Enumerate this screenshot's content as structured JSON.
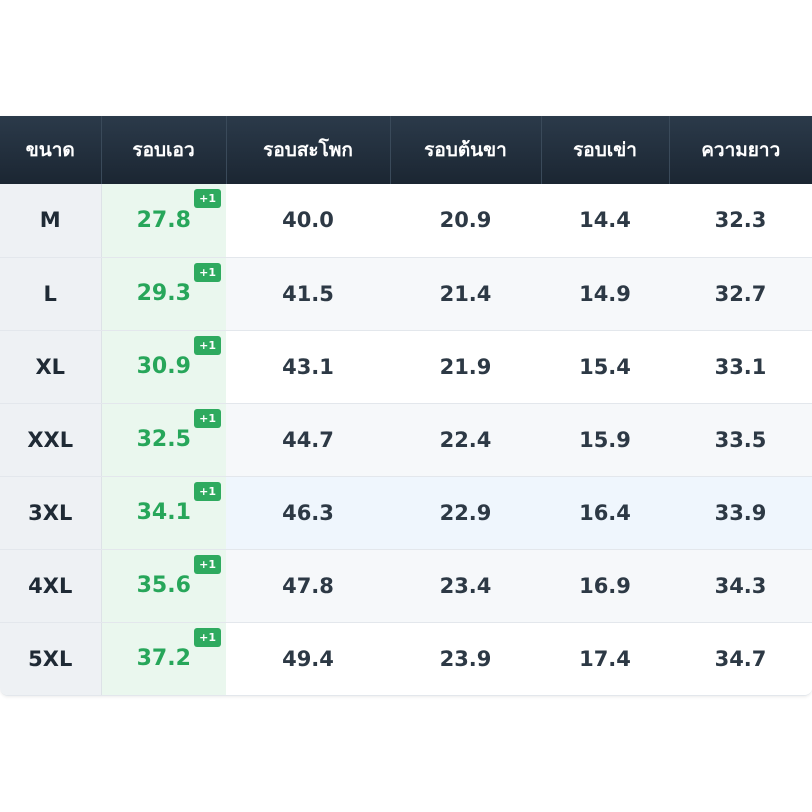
{
  "table": {
    "headers": [
      "ขนาด",
      "รอบเอว",
      "รอบสะโพก",
      "รอบต้นขา",
      "รอบเข่า",
      "ความยาว"
    ],
    "badge_label": "+1",
    "rows": [
      {
        "size": "M",
        "waist": "27.8",
        "hip": "40.0",
        "thigh": "20.9",
        "knee": "14.4",
        "length": "32.3"
      },
      {
        "size": "L",
        "waist": "29.3",
        "hip": "41.5",
        "thigh": "21.4",
        "knee": "14.9",
        "length": "32.7"
      },
      {
        "size": "XL",
        "waist": "30.9",
        "hip": "43.1",
        "thigh": "21.9",
        "knee": "15.4",
        "length": "33.1"
      },
      {
        "size": "XXL",
        "waist": "32.5",
        "hip": "44.7",
        "thigh": "22.4",
        "knee": "15.9",
        "length": "33.5"
      },
      {
        "size": "3XL",
        "waist": "34.1",
        "hip": "46.3",
        "thigh": "22.9",
        "knee": "16.4",
        "length": "33.9"
      },
      {
        "size": "4XL",
        "waist": "35.6",
        "hip": "47.8",
        "thigh": "23.4",
        "knee": "16.9",
        "length": "34.3"
      },
      {
        "size": "5XL",
        "waist": "37.2",
        "hip": "49.4",
        "thigh": "23.9",
        "knee": "17.4",
        "length": "34.7"
      }
    ]
  },
  "colors": {
    "header_bg": "#1f2b38",
    "waist_text": "#27a65a",
    "waist_bg": "#eaf7ee",
    "badge_bg": "#2eaa5f",
    "hover_row_bg": "#eff6fd"
  }
}
